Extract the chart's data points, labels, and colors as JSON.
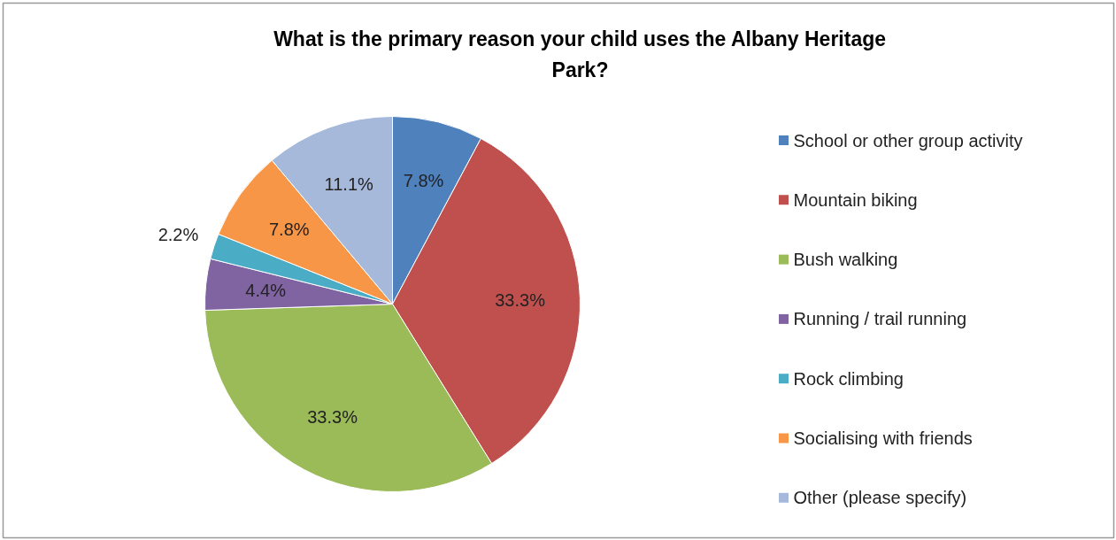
{
  "chart_data": {
    "type": "pie",
    "title": "What is the primary reason your child uses the Albany Heritage Park?",
    "categories": [
      "School or other group activity",
      "Mountain biking",
      "Bush walking",
      "Running / trail running",
      "Rock climbing",
      "Socialising with friends",
      "Other (please specify)"
    ],
    "values": [
      7.8,
      33.3,
      33.3,
      4.4,
      2.2,
      7.8,
      11.1
    ],
    "value_labels": [
      "7.8%",
      "33.3%",
      "33.3%",
      "4.4%",
      "2.2%",
      "7.8%",
      "11.1%"
    ],
    "colors": [
      "#4f81bd",
      "#c0504d",
      "#9bbb59",
      "#8064a2",
      "#4bacc6",
      "#f79646",
      "#a6b9db"
    ],
    "legend": "right"
  }
}
